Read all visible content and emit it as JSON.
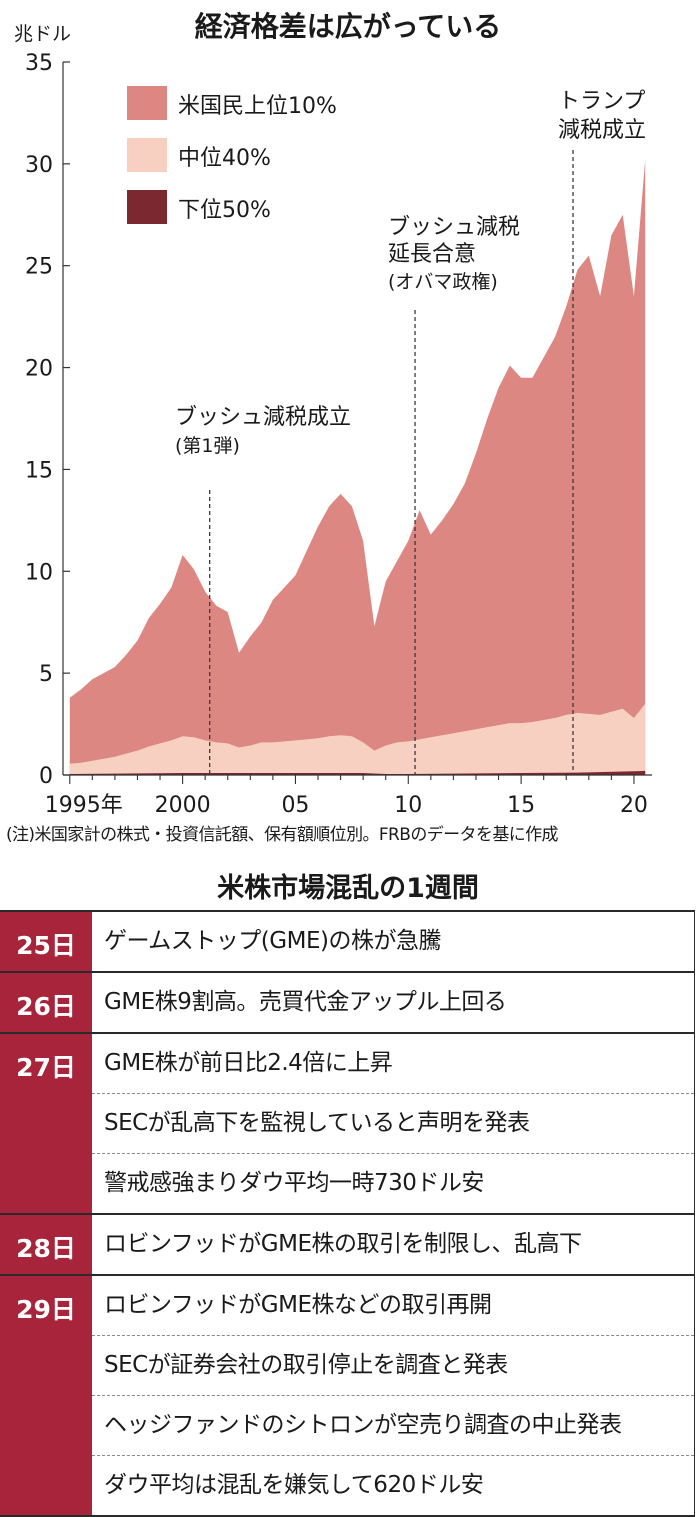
{
  "chart_data": {
    "type": "area",
    "stacked": true,
    "title": "経済格差は広がっている",
    "ylabel": "兆ドル",
    "ylim": [
      0,
      35
    ],
    "yticks": [
      0,
      5,
      10,
      15,
      20,
      25,
      30,
      35
    ],
    "xlim": [
      1994.7,
      2020.8
    ],
    "xticks": [
      {
        "value": 1995,
        "label": "1995年"
      },
      {
        "value": 2000,
        "label": "2000"
      },
      {
        "value": 2005,
        "label": "05"
      },
      {
        "value": 2010,
        "label": "10"
      },
      {
        "value": 2015,
        "label": "15"
      },
      {
        "value": 2020,
        "label": "20"
      }
    ],
    "legend_position": "top-left",
    "series": [
      {
        "name": "下位50%",
        "color": "#7b2830",
        "points": [
          [
            1995,
            0.05
          ],
          [
            2000,
            0.1
          ],
          [
            2005,
            0.1
          ],
          [
            2008,
            0.1
          ],
          [
            2009,
            0.05
          ],
          [
            2010,
            0.05
          ],
          [
            2015,
            0.1
          ],
          [
            2017.5,
            0.12
          ],
          [
            2020,
            0.18
          ],
          [
            2020.5,
            0.2
          ]
        ]
      },
      {
        "name": "中位40%",
        "color": "#f8d0c2",
        "points": [
          [
            1995,
            0.55
          ],
          [
            1995.5,
            0.6
          ],
          [
            1996,
            0.7
          ],
          [
            1996.5,
            0.8
          ],
          [
            1997,
            0.9
          ],
          [
            1997.5,
            1.05
          ],
          [
            1998,
            1.2
          ],
          [
            1998.5,
            1.4
          ],
          [
            1999,
            1.55
          ],
          [
            1999.5,
            1.7
          ],
          [
            2000,
            1.9
          ],
          [
            2000.5,
            1.85
          ],
          [
            2001,
            1.7
          ],
          [
            2001.5,
            1.6
          ],
          [
            2002,
            1.55
          ],
          [
            2002.5,
            1.35
          ],
          [
            2003,
            1.45
          ],
          [
            2003.5,
            1.6
          ],
          [
            2004,
            1.6
          ],
          [
            2004.5,
            1.65
          ],
          [
            2005,
            1.7
          ],
          [
            2005.5,
            1.75
          ],
          [
            2006,
            1.8
          ],
          [
            2006.5,
            1.9
          ],
          [
            2007,
            1.95
          ],
          [
            2007.5,
            1.9
          ],
          [
            2008,
            1.6
          ],
          [
            2008.5,
            1.2
          ],
          [
            2009,
            1.45
          ],
          [
            2009.5,
            1.6
          ],
          [
            2010,
            1.65
          ],
          [
            2010.5,
            1.75
          ],
          [
            2011,
            1.85
          ],
          [
            2011.5,
            1.95
          ],
          [
            2012,
            2.05
          ],
          [
            2012.5,
            2.15
          ],
          [
            2013,
            2.25
          ],
          [
            2013.5,
            2.35
          ],
          [
            2014,
            2.45
          ],
          [
            2014.5,
            2.55
          ],
          [
            2015,
            2.55
          ],
          [
            2015.5,
            2.6
          ],
          [
            2016,
            2.7
          ],
          [
            2016.5,
            2.8
          ],
          [
            2017,
            2.95
          ],
          [
            2017.5,
            3.05
          ],
          [
            2018,
            3.0
          ],
          [
            2018.5,
            2.95
          ],
          [
            2019,
            3.1
          ],
          [
            2019.5,
            3.25
          ],
          [
            2020,
            2.8
          ],
          [
            2020.5,
            3.5
          ]
        ]
      },
      {
        "name": "米国民上位10%",
        "color": "#dd8783",
        "points": [
          [
            1995,
            3.8
          ],
          [
            1995.5,
            4.2
          ],
          [
            1996,
            4.7
          ],
          [
            1996.5,
            5.0
          ],
          [
            1997,
            5.3
          ],
          [
            1997.5,
            5.9
          ],
          [
            1998,
            6.6
          ],
          [
            1998.5,
            7.7
          ],
          [
            1999,
            8.4
          ],
          [
            1999.5,
            9.2
          ],
          [
            2000,
            10.8
          ],
          [
            2000.5,
            10.1
          ],
          [
            2001,
            9.0
          ],
          [
            2001.5,
            8.3
          ],
          [
            2002,
            8.0
          ],
          [
            2002.5,
            6.0
          ],
          [
            2003,
            6.8
          ],
          [
            2003.5,
            7.5
          ],
          [
            2004,
            8.6
          ],
          [
            2004.5,
            9.2
          ],
          [
            2005,
            9.8
          ],
          [
            2005.5,
            11.0
          ],
          [
            2006,
            12.2
          ],
          [
            2006.5,
            13.2
          ],
          [
            2007,
            13.8
          ],
          [
            2007.5,
            13.2
          ],
          [
            2008,
            11.5
          ],
          [
            2008.5,
            7.3
          ],
          [
            2009,
            9.5
          ],
          [
            2009.5,
            10.5
          ],
          [
            2010,
            11.5
          ],
          [
            2010.5,
            13.0
          ],
          [
            2011,
            11.8
          ],
          [
            2011.5,
            12.5
          ],
          [
            2012,
            13.3
          ],
          [
            2012.5,
            14.3
          ],
          [
            2013,
            15.8
          ],
          [
            2013.5,
            17.5
          ],
          [
            2014,
            19.0
          ],
          [
            2014.5,
            20.1
          ],
          [
            2015,
            19.5
          ],
          [
            2015.5,
            19.5
          ],
          [
            2016,
            20.5
          ],
          [
            2016.5,
            21.5
          ],
          [
            2017,
            23.0
          ],
          [
            2017.5,
            24.8
          ],
          [
            2018,
            25.5
          ],
          [
            2018.5,
            23.5
          ],
          [
            2019,
            26.5
          ],
          [
            2019.5,
            27.5
          ],
          [
            2020,
            23.5
          ],
          [
            2020.5,
            30.2
          ]
        ]
      }
    ],
    "annotations": [
      {
        "x": 2001.2,
        "lines": [
          "ブッシュ減税成立",
          "(第1弾)"
        ]
      },
      {
        "x": 2010.3,
        "lines": [
          "ブッシュ減税",
          "延長合意",
          "(オバマ政権)"
        ]
      },
      {
        "x": 2017.3,
        "lines": [
          "トランプ",
          "減税成立"
        ]
      }
    ]
  },
  "note": "(注)米国家計の株式・投資信託額、保有額順位別。FRBのデータを基に作成",
  "timeline": {
    "title": "米株市場混乱の1週間",
    "days": [
      {
        "day": "25日",
        "events": [
          "ゲームストップ(GME)の株が急騰"
        ]
      },
      {
        "day": "26日",
        "events": [
          "GME株9割高。売買代金アップル上回る"
        ]
      },
      {
        "day": "27日",
        "events": [
          "GME株が前日比2.4倍に上昇",
          "SECが乱高下を監視していると声明を発表",
          "警戒感強まりダウ平均一時730ドル安"
        ]
      },
      {
        "day": "28日",
        "events": [
          "ロビンフッドがGME株の取引を制限し、乱高下"
        ]
      },
      {
        "day": "29日",
        "events": [
          "ロビンフッドがGME株などの取引再開",
          "SECが証券会社の取引停止を調査と発表",
          "ヘッジファンドのシトロンが空売り調査の中止発表",
          "ダウ平均は混乱を嫌気して620ドル安"
        ]
      }
    ]
  }
}
